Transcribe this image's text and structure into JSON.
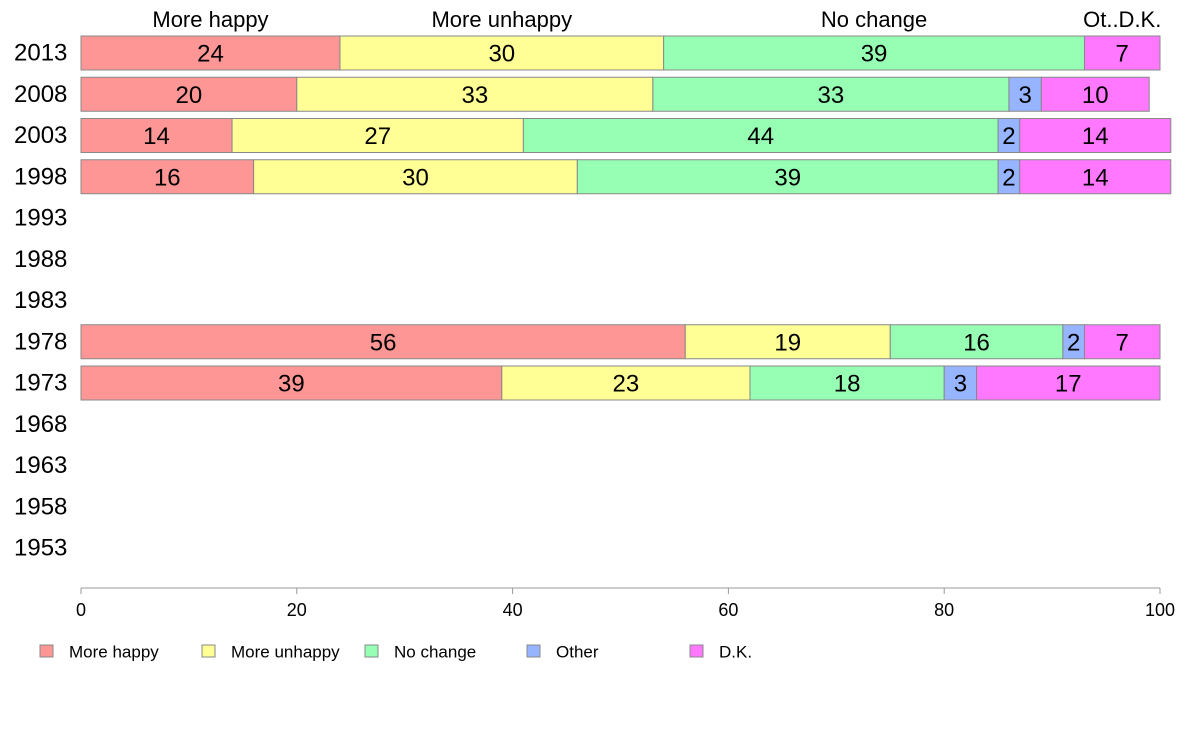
{
  "chart_data": {
    "type": "bar",
    "orientation": "horizontal",
    "stacked": true,
    "header_labels": [
      "More happy",
      "More unhappy",
      "No change",
      "Ot..D.K."
    ],
    "categories": [
      "2013",
      "2008",
      "2003",
      "1998",
      "1993",
      "1988",
      "1983",
      "1978",
      "1973",
      "1968",
      "1963",
      "1958",
      "1953"
    ],
    "series": [
      {
        "name": "More happy",
        "color": "#ff9696",
        "values": [
          24,
          20,
          14,
          16,
          null,
          null,
          null,
          56,
          39,
          null,
          null,
          null,
          null
        ]
      },
      {
        "name": "More unhappy",
        "color": "#ffff96",
        "values": [
          30,
          33,
          27,
          30,
          null,
          null,
          null,
          19,
          23,
          null,
          null,
          null,
          null
        ]
      },
      {
        "name": "No change",
        "color": "#96ffb4",
        "values": [
          39,
          33,
          44,
          39,
          null,
          null,
          null,
          16,
          18,
          null,
          null,
          null,
          null
        ]
      },
      {
        "name": "Other",
        "color": "#96b4ff",
        "values": [
          0,
          3,
          2,
          2,
          null,
          null,
          null,
          2,
          3,
          null,
          null,
          null,
          null
        ]
      },
      {
        "name": "D.K.",
        "color": "#ff78ff",
        "values": [
          7,
          10,
          14,
          14,
          null,
          null,
          null,
          7,
          17,
          null,
          null,
          null,
          null
        ]
      }
    ],
    "xlim": [
      0,
      100
    ],
    "xticks": [
      0,
      20,
      40,
      60,
      80,
      100
    ],
    "grid": false,
    "legend": "bottom",
    "title": "",
    "xlabel": "",
    "ylabel": ""
  }
}
